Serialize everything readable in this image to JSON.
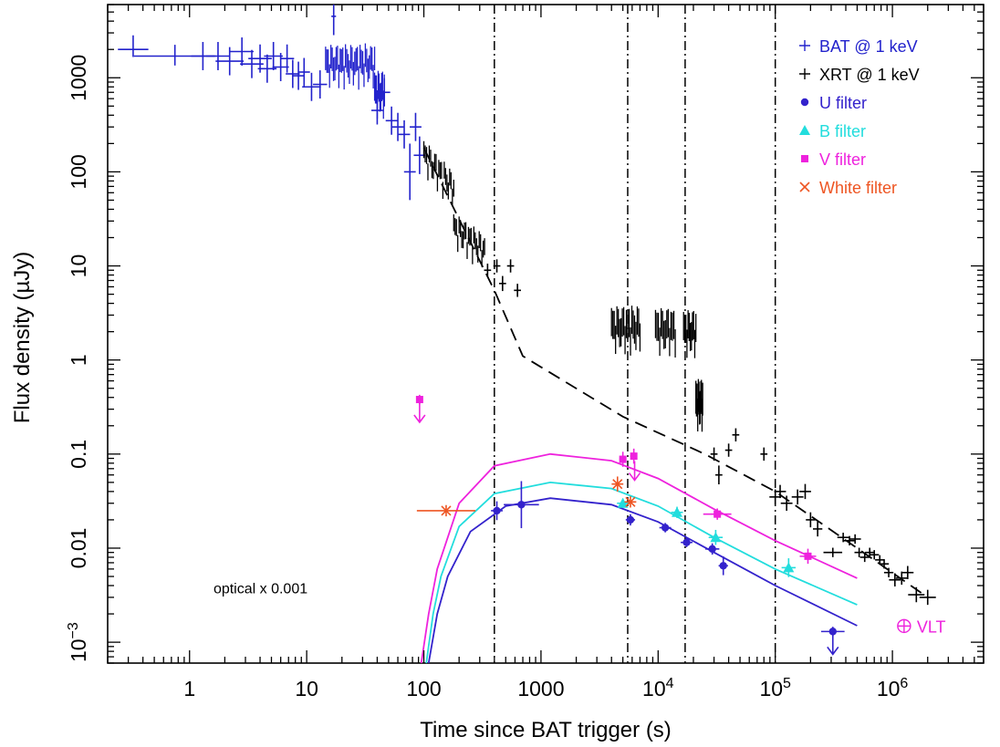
{
  "chart_data": {
    "type": "scatter",
    "xlabel": "Time since BAT trigger (s)",
    "ylabel": "Flux density (µJy)",
    "x_scale": "log",
    "y_scale": "log",
    "xlim": [
      0.2,
      6000000
    ],
    "ylim": [
      0.0006,
      6000
    ],
    "x_ticks": [
      {
        "value": 1,
        "base": "1",
        "exp": ""
      },
      {
        "value": 10,
        "base": "10",
        "exp": ""
      },
      {
        "value": 100,
        "base": "100",
        "exp": ""
      },
      {
        "value": 1000,
        "base": "1000",
        "exp": ""
      },
      {
        "value": 10000,
        "base": "10",
        "exp": "4"
      },
      {
        "value": 100000,
        "base": "10",
        "exp": "5"
      },
      {
        "value": 1000000,
        "base": "10",
        "exp": "6"
      }
    ],
    "y_ticks": [
      {
        "value": 0.001,
        "base": "10",
        "exp": "−3"
      },
      {
        "value": 0.01,
        "base": "0.01",
        "exp": ""
      },
      {
        "value": 0.1,
        "base": "0.1",
        "exp": ""
      },
      {
        "value": 1,
        "base": "1",
        "exp": ""
      },
      {
        "value": 10,
        "base": "10",
        "exp": ""
      },
      {
        "value": 100,
        "base": "100",
        "exp": ""
      },
      {
        "value": 1000,
        "base": "1000",
        "exp": ""
      }
    ],
    "grid": false,
    "legend_position": "top-right",
    "legend": [
      {
        "label": "BAT @ 1 keV",
        "marker": "cross",
        "color": "#2222cc"
      },
      {
        "label": "XRT @ 1 keV",
        "marker": "cross",
        "color": "#000000"
      },
      {
        "label": "U filter",
        "marker": "circle",
        "color": "#3322cc"
      },
      {
        "label": "B filter",
        "marker": "triangle",
        "color": "#22dddd"
      },
      {
        "label": "V filter",
        "marker": "square",
        "color": "#ee22dd"
      },
      {
        "label": "White filter",
        "marker": "x",
        "color": "#ee5522"
      }
    ],
    "annotations": [
      {
        "text": "optical x 0.001",
        "x": 1.6,
        "y": 0.0033
      },
      {
        "text": "VLT",
        "x": 1800000,
        "y": 0.0013,
        "color": "#ee22dd"
      }
    ],
    "vertical_lines": [
      400,
      5500,
      17000,
      100000
    ],
    "series": [
      {
        "name": "BAT @ 1 keV",
        "color": "#2222cc",
        "points": [
          [
            0.33,
            2000,
            0.13,
            0.08,
            0.15
          ],
          [
            0.75,
            1700,
            0.35,
            0.1,
            0.12
          ],
          [
            1.3,
            1700,
            0.1,
            0.15,
            0.15
          ],
          [
            1.75,
            1700,
            0.1,
            0.15,
            0.15
          ],
          [
            2.2,
            1500,
            0.12,
            0.15,
            0.15
          ],
          [
            2.8,
            1900,
            0.1,
            0.15,
            0.15
          ],
          [
            3.4,
            1400,
            0.1,
            0.15,
            0.15
          ],
          [
            4.0,
            1600,
            0.1,
            0.15,
            0.15
          ],
          [
            4.6,
            1250,
            0.08,
            0.15,
            0.15
          ],
          [
            5.2,
            1700,
            0.08,
            0.15,
            0.15
          ],
          [
            6.0,
            1300,
            0.07,
            0.15,
            0.15
          ],
          [
            6.8,
            1600,
            0.06,
            0.15,
            0.15
          ],
          [
            7.6,
            1100,
            0.06,
            0.15,
            0.15
          ],
          [
            8.5,
            1050,
            0.05,
            0.15,
            0.15
          ],
          [
            9.5,
            1150,
            0.05,
            0.15,
            0.15
          ],
          [
            11,
            800,
            0.08,
            0.15,
            0.15
          ],
          [
            13,
            850,
            0.06,
            0.15,
            0.15
          ],
          [
            17,
            4500,
            0.02,
            0.2,
            0.2
          ],
          [
            40,
            450,
            0.05,
            0.15,
            0.15
          ],
          [
            46,
            700,
            0.05,
            0.15,
            0.15
          ],
          [
            53,
            350,
            0.05,
            0.15,
            0.15
          ],
          [
            60,
            300,
            0.05,
            0.15,
            0.15
          ],
          [
            68,
            250,
            0.05,
            0.15,
            0.15
          ],
          [
            76,
            100,
            0.05,
            0.3,
            0.3
          ],
          [
            85,
            300,
            0.05,
            0.15,
            0.15
          ],
          [
            92,
            150,
            0.05,
            0.2,
            0.2
          ]
        ],
        "bursts": [
          [
            14.5,
            38,
            1400,
            0.25
          ],
          [
            38,
            46,
            700,
            0.3
          ]
        ]
      },
      {
        "name": "XRT @ 1 keV",
        "color": "#000000",
        "points": [
          [
            350,
            9,
            0.03,
            0.07,
            0.07
          ],
          [
            420,
            10,
            0.03,
            0.07,
            0.07
          ],
          [
            470,
            6.5,
            0.03,
            0.08,
            0.08
          ],
          [
            550,
            10,
            0.03,
            0.07,
            0.07
          ],
          [
            630,
            5.5,
            0.03,
            0.07,
            0.07
          ],
          [
            30000,
            0.1,
            0.03,
            0.07,
            0.07
          ],
          [
            33000,
            0.06,
            0.03,
            0.1,
            0.1
          ],
          [
            40000,
            0.11,
            0.03,
            0.07,
            0.07
          ],
          [
            46000,
            0.16,
            0.03,
            0.07,
            0.07
          ],
          [
            80000,
            0.1,
            0.03,
            0.07,
            0.07
          ],
          [
            100000,
            0.035,
            0.05,
            0.08,
            0.08
          ],
          [
            110000,
            0.04,
            0.05,
            0.07,
            0.07
          ],
          [
            125000,
            0.03,
            0.05,
            0.08,
            0.08
          ],
          [
            155000,
            0.035,
            0.05,
            0.08,
            0.08
          ],
          [
            180000,
            0.04,
            0.05,
            0.08,
            0.08
          ],
          [
            200000,
            0.02,
            0.04,
            0.08,
            0.08
          ],
          [
            230000,
            0.016,
            0.04,
            0.08,
            0.08
          ],
          [
            310000,
            0.009,
            0.08,
            0.05,
            0.05
          ],
          [
            380000,
            0.013,
            0.05,
            0.05,
            0.05
          ],
          [
            430000,
            0.012,
            0.05,
            0.05,
            0.05
          ],
          [
            480000,
            0.0125,
            0.05,
            0.05,
            0.05
          ],
          [
            520000,
            0.009,
            0.04,
            0.05,
            0.05
          ],
          [
            580000,
            0.008,
            0.04,
            0.05,
            0.05
          ],
          [
            640000,
            0.009,
            0.04,
            0.05,
            0.05
          ],
          [
            700000,
            0.0085,
            0.04,
            0.05,
            0.05
          ],
          [
            780000,
            0.0075,
            0.04,
            0.05,
            0.05
          ],
          [
            850000,
            0.0068,
            0.04,
            0.05,
            0.05
          ],
          [
            930000,
            0.0055,
            0.04,
            0.05,
            0.05
          ],
          [
            1050000,
            0.0046,
            0.05,
            0.07,
            0.07
          ],
          [
            1200000,
            0.0048,
            0.05,
            0.07,
            0.07
          ],
          [
            1350000,
            0.0055,
            0.05,
            0.07,
            0.07
          ],
          [
            1600000,
            0.0032,
            0.07,
            0.08,
            0.08
          ],
          [
            2000000,
            0.003,
            0.07,
            0.08,
            0.08
          ]
        ],
        "bursts": [
          [
            100,
            180,
            150,
            0.18
          ],
          [
            180,
            330,
            25,
            0.18
          ],
          [
            4000,
            7000,
            2.2,
            0.3
          ],
          [
            9500,
            14000,
            2.1,
            0.3
          ],
          [
            16500,
            21000,
            2.0,
            0.3
          ],
          [
            21000,
            24000,
            0.35,
            0.35
          ]
        ]
      },
      {
        "name": "U filter",
        "color": "#3322cc",
        "points": [
          [
            680,
            0.029,
            0.15,
            0.25,
            0.25
          ],
          [
            420,
            0.025,
            0.05,
            0.1,
            0.1
          ],
          [
            5800,
            0.02,
            0.04,
            0.06,
            0.06
          ],
          [
            11500,
            0.0165,
            0.05,
            0.05,
            0.05
          ],
          [
            17500,
            0.0115,
            0.05,
            0.05,
            0.05
          ],
          [
            29000,
            0.0098,
            0.06,
            0.06,
            0.06
          ],
          [
            36000,
            0.0065,
            0.04,
            0.1,
            0.1
          ],
          [
            310000,
            0.0013,
            0.1,
            0.05,
            0.05
          ]
        ]
      },
      {
        "name": "B filter",
        "color": "#22dddd",
        "points": [
          [
            5000,
            0.03,
            0.05,
            0.05,
            0.05
          ],
          [
            14500,
            0.024,
            0.05,
            0.06,
            0.06
          ],
          [
            31000,
            0.013,
            0.06,
            0.08,
            0.08
          ],
          [
            130000,
            0.0062,
            0.06,
            0.1,
            0.1
          ]
        ]
      },
      {
        "name": "V filter",
        "color": "#ee22dd",
        "points": [
          [
            92,
            0.38,
            0,
            0.05,
            0.05
          ],
          [
            5000,
            0.088,
            0.03,
            0.08,
            0.08
          ],
          [
            6200,
            0.095,
            0.03,
            0.08,
            0.08
          ],
          [
            32000,
            0.023,
            0.12,
            0.06,
            0.06
          ],
          [
            190000,
            0.0082,
            0.07,
            0.08,
            0.08
          ]
        ]
      },
      {
        "name": "White filter",
        "color": "#ee5522",
        "points": [
          [
            155,
            0.025,
            0.25,
            0.06,
            0.06
          ],
          [
            4500,
            0.048,
            0.05,
            0.08,
            0.08
          ],
          [
            5800,
            0.031,
            0.05,
            0.06,
            0.06
          ]
        ]
      }
    ],
    "upper_limits": [
      {
        "series": "V filter",
        "x": 92,
        "y": 0.38,
        "color": "#ee22dd"
      },
      {
        "series": "V filter",
        "x": 6300,
        "y": 0.092,
        "color": "#ee22dd"
      },
      {
        "series": "U filter",
        "x": 310000,
        "y": 0.0013,
        "color": "#3322cc"
      }
    ],
    "model_lines": [
      {
        "name": "X-ray model",
        "style": "dashed",
        "color": "#000000",
        "points": [
          [
            100,
            180
          ],
          [
            400,
            5.5
          ],
          [
            700,
            1.1
          ],
          [
            5000,
            0.25
          ],
          [
            25000,
            0.1
          ],
          [
            100000,
            0.04
          ],
          [
            500000,
            0.01
          ],
          [
            2000000,
            0.003
          ]
        ]
      },
      {
        "name": "V model",
        "style": "solid",
        "color": "#ee22dd",
        "points": [
          [
            95,
            0.0006
          ],
          [
            110,
            0.002
          ],
          [
            130,
            0.006
          ],
          [
            200,
            0.03
          ],
          [
            400,
            0.075
          ],
          [
            1200,
            0.1
          ],
          [
            4000,
            0.085
          ],
          [
            10000,
            0.055
          ],
          [
            30000,
            0.026
          ],
          [
            100000,
            0.012
          ],
          [
            500000,
            0.0048
          ]
        ]
      },
      {
        "name": "B model",
        "style": "solid",
        "color": "#22dddd",
        "points": [
          [
            105,
            0.0006
          ],
          [
            120,
            0.002
          ],
          [
            140,
            0.005
          ],
          [
            200,
            0.017
          ],
          [
            400,
            0.038
          ],
          [
            1200,
            0.05
          ],
          [
            4000,
            0.043
          ],
          [
            10000,
            0.028
          ],
          [
            30000,
            0.013
          ],
          [
            100000,
            0.006
          ],
          [
            500000,
            0.0025
          ]
        ]
      },
      {
        "name": "U model",
        "style": "solid",
        "color": "#3322cc",
        "points": [
          [
            110,
            0.0006
          ],
          [
            130,
            0.002
          ],
          [
            160,
            0.005
          ],
          [
            250,
            0.015
          ],
          [
            500,
            0.028
          ],
          [
            1200,
            0.034
          ],
          [
            4000,
            0.029
          ],
          [
            10000,
            0.019
          ],
          [
            30000,
            0.009
          ],
          [
            100000,
            0.004
          ],
          [
            500000,
            0.0015
          ]
        ]
      }
    ]
  }
}
